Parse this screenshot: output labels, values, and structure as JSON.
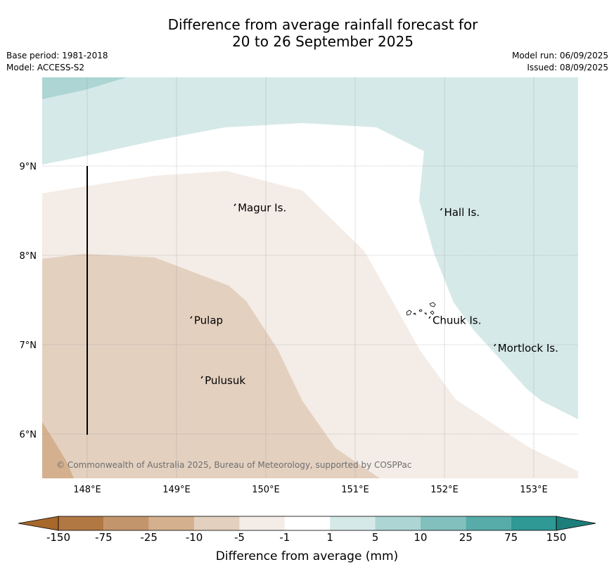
{
  "title": {
    "line1": "Difference from average rainfall forecast for",
    "line2": "20 to 26 September 2025"
  },
  "meta": {
    "base_period": "Base period: 1981-2018",
    "model": "Model: ACCESS-S2",
    "model_run": "Model run: 06/09/2025",
    "issued": "Issued: 08/09/2025"
  },
  "axes": {
    "longitudes": [
      {
        "value": 148,
        "label": "148°E"
      },
      {
        "value": 149,
        "label": "149°E"
      },
      {
        "value": 150,
        "label": "150°E"
      },
      {
        "value": 151,
        "label": "151°E"
      },
      {
        "value": 152,
        "label": "152°E"
      },
      {
        "value": 153,
        "label": "153°E"
      }
    ],
    "latitudes": [
      {
        "value": 9,
        "label": "9°N"
      },
      {
        "value": 8,
        "label": "8°N"
      },
      {
        "value": 7,
        "label": "7°N"
      },
      {
        "value": 6,
        "label": "6°N"
      }
    ],
    "lon_range": [
      147.5,
      153.5
    ],
    "lat_range": [
      5.5,
      10.0
    ]
  },
  "places": [
    {
      "name": "Magur Is.",
      "lon": 149.67,
      "lat": 8.53
    },
    {
      "name": "Hall Is.",
      "lon": 151.98,
      "lat": 8.48
    },
    {
      "name": "Pulap",
      "lon": 149.18,
      "lat": 7.27
    },
    {
      "name": "Chuuk Is.",
      "lon": 151.85,
      "lat": 7.27
    },
    {
      "name": "Mortlock Is.",
      "lon": 152.58,
      "lat": 6.96
    },
    {
      "name": "Pulusuk",
      "lon": 149.3,
      "lat": 6.6
    }
  ],
  "copyright": "© Commonwealth of Australia 2025, Bureau of Meteorology, supported by COSPPac",
  "legend": {
    "title": "Difference from average (mm)",
    "ticks": [
      "-150",
      "-75",
      "-25",
      "-10",
      "-5",
      "-1",
      "1",
      "5",
      "10",
      "25",
      "75",
      "150"
    ],
    "colors": [
      "#a8672b",
      "#b27844",
      "#c3956c",
      "#d4b08e",
      "#e3d0bf",
      "#f4ece6",
      "#ffffff",
      "#d5e9e8",
      "#acd5d4",
      "#82c0be",
      "#57aca9",
      "#2e9995",
      "#1d7e7a"
    ]
  },
  "regions": [
    {
      "category": "1 to 5",
      "color": "#d5e9e8"
    },
    {
      "category": "5 to 10",
      "color": "#acd5d4"
    },
    {
      "category": "-5 to -1",
      "color": "#f4ece6"
    },
    {
      "category": "-10 to -5",
      "color": "#e3d0bf"
    },
    {
      "category": "-25 to -10",
      "color": "#d4b08e"
    }
  ]
}
